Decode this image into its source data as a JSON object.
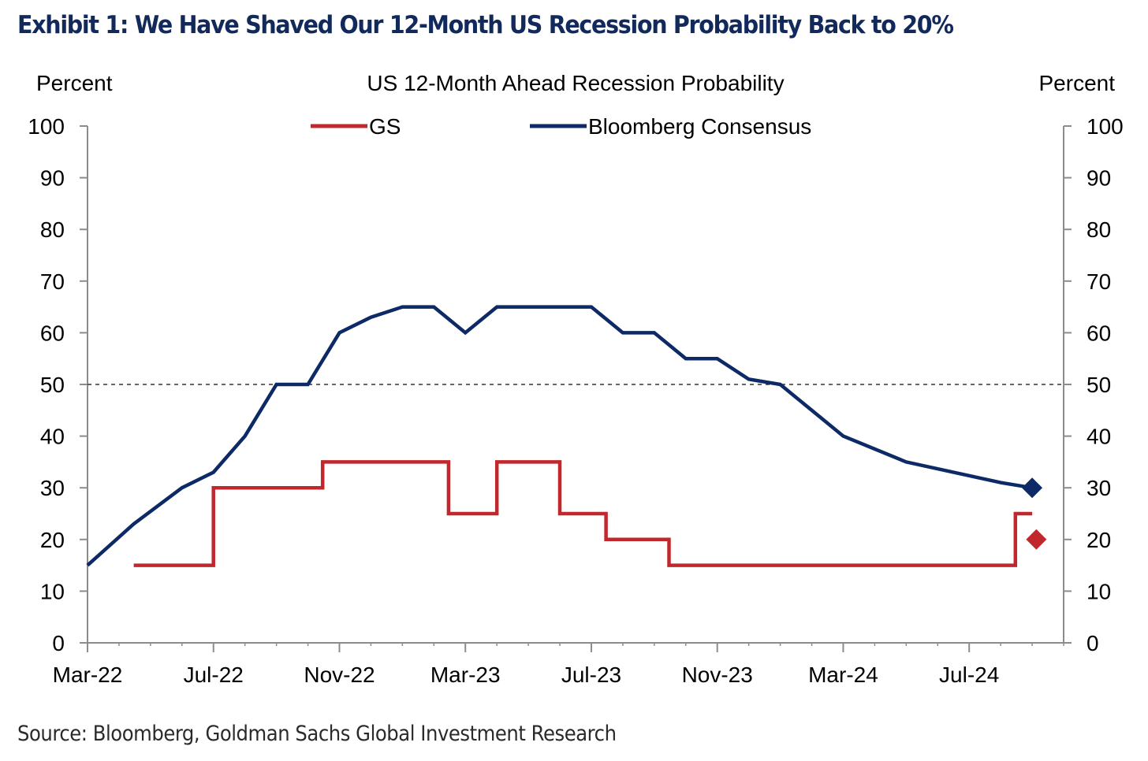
{
  "exhibit_title": "Exhibit 1: We Have Shaved Our 12-Month US Recession Probability Back to 20%",
  "source": "Source: Bloomberg, Goldman Sachs Global Investment Research",
  "colors": {
    "gs": "#c0282e",
    "bloomberg": "#0d2a66",
    "title": "#12295c"
  },
  "chart_data": {
    "type": "line",
    "title": "US 12-Month  Ahead  Recession Probability",
    "ylabel_left": "Percent",
    "ylabel_right": "Percent",
    "ylim": [
      0,
      100
    ],
    "y_ticks": [
      "0",
      "10",
      "20",
      "30",
      "40",
      "50",
      "60",
      "70",
      "80",
      "90",
      "100"
    ],
    "x_ticks": [
      "Mar-22",
      "Jul-22",
      "Nov-22",
      "Mar-23",
      "Jul-23",
      "Nov-23",
      "Mar-24",
      "Jul-24"
    ],
    "x_range": [
      "2022-03",
      "2024-10"
    ],
    "reference_line": 50,
    "legend_position": "top-center",
    "series": [
      {
        "name": "GS",
        "step": true,
        "points": [
          [
            "2022-04-15",
            15
          ],
          [
            "2022-07-01",
            30
          ],
          [
            "2022-10-15",
            35
          ],
          [
            "2023-02-15",
            25
          ],
          [
            "2023-04-01",
            35
          ],
          [
            "2023-06-01",
            25
          ],
          [
            "2023-07-15",
            20
          ],
          [
            "2023-09-15",
            15
          ],
          [
            "2024-08-15",
            25
          ],
          [
            "2024-09-01",
            25
          ]
        ],
        "marker": [
          "2024-09-05",
          20
        ]
      },
      {
        "name": "Bloomberg Consensus",
        "step": false,
        "points": [
          [
            "2022-03-01",
            15
          ],
          [
            "2022-04-15",
            23
          ],
          [
            "2022-06-01",
            30
          ],
          [
            "2022-07-01",
            33
          ],
          [
            "2022-08-01",
            40
          ],
          [
            "2022-09-01",
            50
          ],
          [
            "2022-10-01",
            50
          ],
          [
            "2022-11-01",
            60
          ],
          [
            "2022-12-01",
            63
          ],
          [
            "2023-01-01",
            65
          ],
          [
            "2023-02-01",
            65
          ],
          [
            "2023-03-01",
            60
          ],
          [
            "2023-04-01",
            65
          ],
          [
            "2023-05-01",
            65
          ],
          [
            "2023-06-01",
            65
          ],
          [
            "2023-07-01",
            65
          ],
          [
            "2023-08-01",
            60
          ],
          [
            "2023-09-01",
            60
          ],
          [
            "2023-10-01",
            55
          ],
          [
            "2023-11-01",
            55
          ],
          [
            "2023-12-01",
            51
          ],
          [
            "2024-01-01",
            50
          ],
          [
            "2024-02-01",
            45
          ],
          [
            "2024-03-01",
            40
          ],
          [
            "2024-05-01",
            35
          ],
          [
            "2024-08-01",
            31
          ],
          [
            "2024-09-01",
            30
          ]
        ],
        "marker": [
          "2024-09-01",
          30
        ]
      }
    ]
  }
}
